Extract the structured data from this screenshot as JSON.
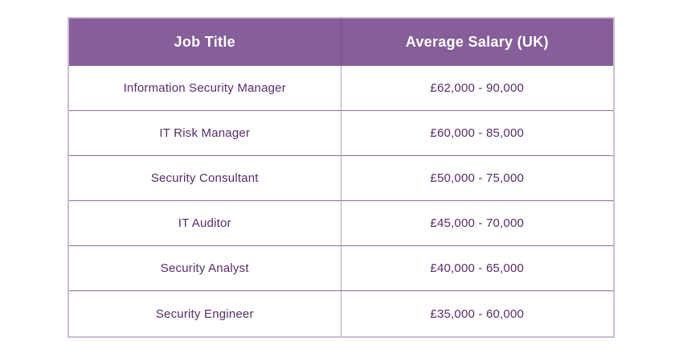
{
  "chart_data": {
    "type": "table",
    "columns": [
      "Job Title",
      "Average Salary (UK)"
    ],
    "rows": [
      [
        "Information Security Manager",
        "£62,000 - 90,000"
      ],
      [
        "IT Risk Manager",
        "£60,000 - 85,000"
      ],
      [
        "Security Consultant",
        "£50,000 - 75,000"
      ],
      [
        "IT Auditor",
        "£45,000 - 70,000"
      ],
      [
        "Security Analyst",
        "£40,000 - 65,000"
      ],
      [
        "Security Engineer",
        "£35,000 - 60,000"
      ]
    ],
    "legend": false,
    "grid": true
  },
  "colors": {
    "page_bg": "#FFFFFF",
    "header_bg": "#855E9A",
    "header_text": "#FFFFFF",
    "body_text": "#582B69",
    "outer_border": "#C9BBD4",
    "row_border": "#8B6D9C",
    "col_border_body": "#B3A2C1",
    "col_border_header": "#6E4C82"
  }
}
